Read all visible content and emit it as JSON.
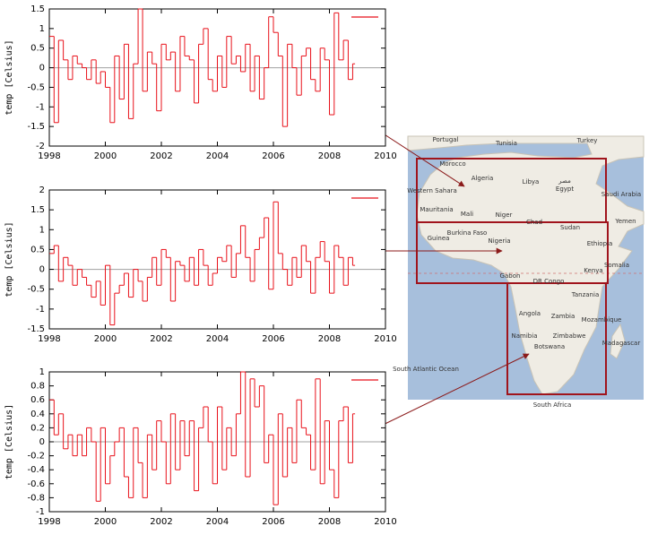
{
  "chart_data": [
    {
      "type": "line",
      "ylabel": "temp [Celsius]",
      "x": [
        1998,
        1998.17,
        1998.33,
        1998.5,
        1998.67,
        1998.83,
        1999,
        1999.17,
        1999.33,
        1999.5,
        1999.67,
        1999.83,
        2000,
        2000.17,
        2000.33,
        2000.5,
        2000.67,
        2000.83,
        2001,
        2001.17,
        2001.33,
        2001.5,
        2001.67,
        2001.83,
        2002,
        2002.17,
        2002.33,
        2002.5,
        2002.67,
        2002.83,
        2003,
        2003.17,
        2003.33,
        2003.5,
        2003.67,
        2003.83,
        2004,
        2004.17,
        2004.33,
        2004.5,
        2004.67,
        2004.83,
        2005,
        2005.17,
        2005.33,
        2005.5,
        2005.67,
        2005.83,
        2006,
        2006.17,
        2006.33,
        2006.5,
        2006.67,
        2006.83,
        2007,
        2007.17,
        2007.33,
        2007.5,
        2007.67,
        2007.83,
        2008,
        2008.17,
        2008.33,
        2008.5,
        2008.67,
        2008.83
      ],
      "series": [
        {
          "color": "#e8111a",
          "values": [
            0.8,
            -1.4,
            0.7,
            0.2,
            -0.3,
            0.3,
            0.1,
            0.0,
            -0.3,
            0.2,
            -0.4,
            -0.1,
            -0.5,
            -1.4,
            0.3,
            -0.8,
            0.6,
            -1.3,
            0.1,
            1.5,
            -0.6,
            0.4,
            0.1,
            -1.1,
            0.6,
            0.2,
            0.4,
            -0.6,
            0.8,
            0.3,
            0.2,
            -0.9,
            0.6,
            1.0,
            -0.3,
            -0.6,
            0.3,
            -0.5,
            0.8,
            0.1,
            0.3,
            -0.1,
            0.6,
            -0.6,
            0.3,
            -0.8,
            0.0,
            1.3,
            0.9,
            0.3,
            -1.5,
            0.6,
            0.0,
            -0.7,
            0.3,
            0.5,
            -0.3,
            -0.6,
            0.5,
            0.2,
            -1.2,
            1.4,
            0.2,
            0.7,
            -0.3,
            0.1
          ]
        }
      ],
      "xlim": [
        1998,
        2010
      ],
      "xticks": [
        1998,
        2000,
        2002,
        2004,
        2006,
        2008,
        2010
      ],
      "ylim": [
        -2,
        1.5
      ],
      "yticks": [
        -2,
        -1.5,
        -1,
        -0.5,
        0,
        0.5,
        1,
        1.5
      ],
      "legend": "upper right"
    },
    {
      "type": "line",
      "ylabel": "temp [Celsius]",
      "x": [
        1998,
        1998.17,
        1998.33,
        1998.5,
        1998.67,
        1998.83,
        1999,
        1999.17,
        1999.33,
        1999.5,
        1999.67,
        1999.83,
        2000,
        2000.17,
        2000.33,
        2000.5,
        2000.67,
        2000.83,
        2001,
        2001.17,
        2001.33,
        2001.5,
        2001.67,
        2001.83,
        2002,
        2002.17,
        2002.33,
        2002.5,
        2002.67,
        2002.83,
        2003,
        2003.17,
        2003.33,
        2003.5,
        2003.67,
        2003.83,
        2004,
        2004.17,
        2004.33,
        2004.5,
        2004.67,
        2004.83,
        2005,
        2005.17,
        2005.33,
        2005.5,
        2005.67,
        2005.83,
        2006,
        2006.17,
        2006.33,
        2006.5,
        2006.67,
        2006.83,
        2007,
        2007.17,
        2007.33,
        2007.5,
        2007.67,
        2007.83,
        2008,
        2008.17,
        2008.33,
        2008.5,
        2008.67,
        2008.83
      ],
      "series": [
        {
          "color": "#e8111a",
          "values": [
            0.4,
            0.6,
            -0.3,
            0.3,
            0.1,
            -0.4,
            0.0,
            -0.2,
            -0.4,
            -0.7,
            -0.3,
            -0.9,
            0.1,
            -1.4,
            -0.6,
            -0.4,
            -0.1,
            -0.7,
            0.0,
            -0.3,
            -0.8,
            -0.2,
            0.3,
            -0.4,
            0.5,
            0.3,
            -0.8,
            0.2,
            0.1,
            -0.3,
            0.3,
            -0.4,
            0.5,
            0.1,
            -0.4,
            -0.1,
            0.3,
            0.2,
            0.6,
            -0.2,
            0.4,
            1.1,
            0.3,
            -0.3,
            0.5,
            0.8,
            1.3,
            -0.5,
            1.7,
            0.4,
            0.0,
            -0.4,
            0.3,
            -0.2,
            0.6,
            0.2,
            -0.6,
            0.3,
            0.7,
            0.2,
            -0.6,
            0.6,
            0.3,
            -0.4,
            0.3,
            0.1
          ]
        }
      ],
      "xlim": [
        1998,
        2010
      ],
      "xticks": [
        1998,
        2000,
        2002,
        2004,
        2006,
        2008,
        2010
      ],
      "ylim": [
        -1.5,
        2
      ],
      "yticks": [
        -1.5,
        -1,
        -0.5,
        0,
        0.5,
        1,
        1.5,
        2
      ],
      "legend": "upper right"
    },
    {
      "type": "line",
      "ylabel": "temp [Celsius]",
      "x": [
        1998,
        1998.17,
        1998.33,
        1998.5,
        1998.67,
        1998.83,
        1999,
        1999.17,
        1999.33,
        1999.5,
        1999.67,
        1999.83,
        2000,
        2000.17,
        2000.33,
        2000.5,
        2000.67,
        2000.83,
        2001,
        2001.17,
        2001.33,
        2001.5,
        2001.67,
        2001.83,
        2002,
        2002.17,
        2002.33,
        2002.5,
        2002.67,
        2002.83,
        2003,
        2003.17,
        2003.33,
        2003.5,
        2003.67,
        2003.83,
        2004,
        2004.17,
        2004.33,
        2004.5,
        2004.67,
        2004.83,
        2005,
        2005.17,
        2005.33,
        2005.5,
        2005.67,
        2005.83,
        2006,
        2006.17,
        2006.33,
        2006.5,
        2006.67,
        2006.83,
        2007,
        2007.17,
        2007.33,
        2007.5,
        2007.67,
        2007.83,
        2008,
        2008.17,
        2008.33,
        2008.5,
        2008.67,
        2008.83
      ],
      "series": [
        {
          "color": "#e8111a",
          "values": [
            0.6,
            0.1,
            0.4,
            -0.1,
            0.1,
            -0.2,
            0.1,
            -0.2,
            0.2,
            0.0,
            -0.85,
            0.2,
            -0.6,
            -0.2,
            0.0,
            0.2,
            -0.5,
            -0.8,
            0.2,
            -0.3,
            -0.8,
            0.1,
            -0.4,
            0.3,
            0.0,
            -0.6,
            0.4,
            -0.4,
            0.3,
            -0.2,
            0.3,
            -0.7,
            0.2,
            0.5,
            0.0,
            -0.6,
            0.5,
            -0.4,
            0.2,
            -0.2,
            0.4,
            1.0,
            -0.5,
            0.9,
            0.5,
            0.8,
            -0.3,
            0.1,
            -0.9,
            0.4,
            -0.5,
            0.2,
            -0.3,
            0.6,
            0.2,
            0.1,
            -0.4,
            0.9,
            -0.6,
            0.3,
            -0.4,
            -0.8,
            0.3,
            0.5,
            -0.3,
            0.4
          ]
        }
      ],
      "xlim": [
        1998,
        2010
      ],
      "xticks": [
        1998,
        2000,
        2002,
        2004,
        2006,
        2008,
        2010
      ],
      "ylim": [
        -1,
        1
      ],
      "yticks": [
        -1,
        -0.8,
        -0.6,
        -0.4,
        -0.2,
        0,
        0.2,
        0.4,
        0.6,
        0.8,
        1
      ],
      "legend": "upper right"
    }
  ],
  "map": {
    "labels": [
      "Portugal",
      "Tunisia",
      "Turkey",
      "Morocco",
      "Algeria",
      "Libya",
      "مصر",
      "Egypt",
      "Saudi Arabia",
      "Western Sahara",
      "Mauritania",
      "Mali",
      "Niger",
      "Chad",
      "Sudan",
      "Yemen",
      "Guinea",
      "Burkina Faso",
      "Nigeria",
      "Ethiopia",
      "Somalia",
      "Gabon",
      "Kenya",
      "DR Congo",
      "Tanzania",
      "Angola",
      "Zambia",
      "Mozambique",
      "Zimbabwe",
      "Namibia",
      "Botswana",
      "Madagascar",
      "South Atlantic Ocean",
      "South Africa"
    ]
  }
}
